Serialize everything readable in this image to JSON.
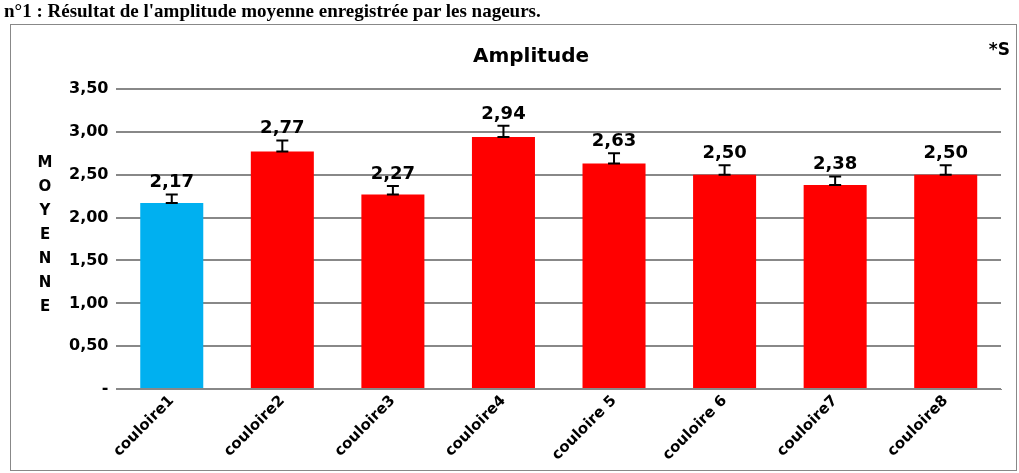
{
  "chart_data": {
    "type": "bar",
    "title": "Amplitude",
    "ylabel": "MOYENNE",
    "annotations": [
      "n°1 : Résultat de l'amplitude moyenne enregistrée par les nageurs.",
      "*S"
    ],
    "categories": [
      "couloire1",
      "couloire2",
      "couloire3",
      "couloire4",
      "couloire 5",
      "couloire 6",
      "couloire7",
      "couloire8"
    ],
    "values": [
      2.17,
      2.77,
      2.27,
      2.94,
      2.63,
      2.5,
      2.38,
      2.5
    ],
    "colors": [
      "#00b0f0",
      "#ff0000",
      "#ff0000",
      "#ff0000",
      "#ff0000",
      "#ff0000",
      "#ff0000",
      "#ff0000"
    ],
    "errors": [
      [
        2.17,
        2.27
      ],
      [
        2.77,
        2.9
      ],
      [
        2.27,
        2.37
      ],
      [
        2.94,
        3.07
      ],
      [
        2.63,
        2.75
      ],
      [
        2.5,
        2.61
      ],
      [
        2.38,
        2.48
      ],
      [
        2.5,
        2.61
      ]
    ],
    "value_labels": [
      "2,17",
      "2,77",
      "2,27",
      "2,94",
      "2,63",
      "2,50",
      "2,38",
      "2,50"
    ],
    "ylim": [
      0,
      3.5
    ],
    "yticks": [
      {
        "value": 0,
        "label": "-"
      },
      {
        "value": 0.5,
        "label": "0,50"
      },
      {
        "value": 1,
        "label": "1,00"
      },
      {
        "value": 1.5,
        "label": "1,50"
      },
      {
        "value": 2,
        "label": "2,00"
      },
      {
        "value": 2.5,
        "label": "2,50"
      },
      {
        "value": 3,
        "label": "3,00"
      },
      {
        "value": 3.5,
        "label": "3,50"
      }
    ],
    "grid": "y",
    "legend": false
  }
}
